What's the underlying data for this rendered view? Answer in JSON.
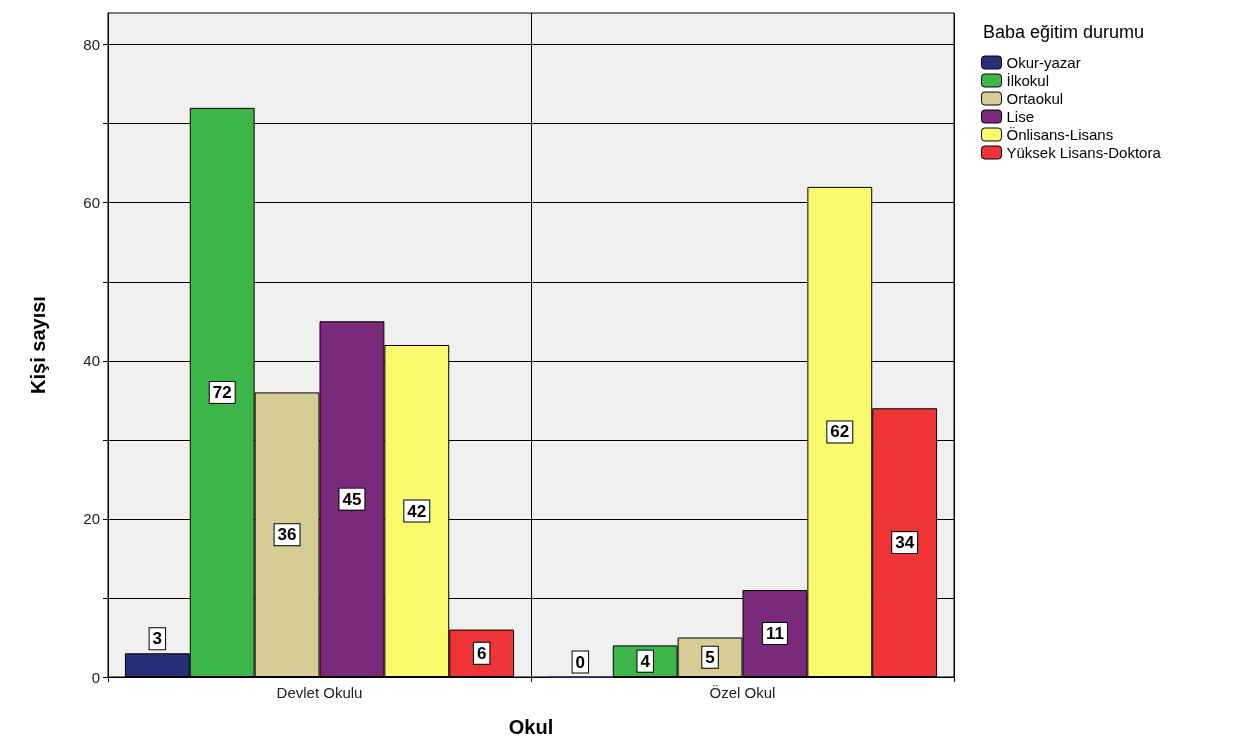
{
  "chart_data": {
    "type": "bar",
    "xlabel": "Okul",
    "ylabel": "Kişi sayısı",
    "legend_title": "Baba eğitim durumu",
    "categories": [
      "Devlet Okulu",
      "Özel Okul"
    ],
    "series": [
      {
        "name": "Okur-yazar",
        "color": "#26307a",
        "values": [
          3,
          0
        ]
      },
      {
        "name": "İlkokul",
        "color": "#3cb54a",
        "values": [
          72,
          4
        ]
      },
      {
        "name": "Ortaokul",
        "color": "#d6cc94",
        "values": [
          36,
          5
        ]
      },
      {
        "name": "Lise",
        "color": "#7a2a7a",
        "values": [
          45,
          11
        ]
      },
      {
        "name": "Önlisans-Lisans",
        "color": "#fafa6e",
        "values": [
          42,
          62
        ]
      },
      {
        "name": "Yüksek Lisans-Doktora",
        "color": "#ee3436",
        "values": [
          6,
          34
        ]
      }
    ],
    "ylim": [
      0,
      84
    ],
    "yticks": [
      0,
      {
        "value": 10,
        "label": null
      },
      20,
      {
        "value": 30,
        "label": null
      },
      40,
      {
        "value": 50,
        "label": null
      },
      60,
      {
        "value": 70,
        "label": null
      },
      80
    ],
    "grid": true,
    "legend": "top right",
    "data_labels": true
  }
}
